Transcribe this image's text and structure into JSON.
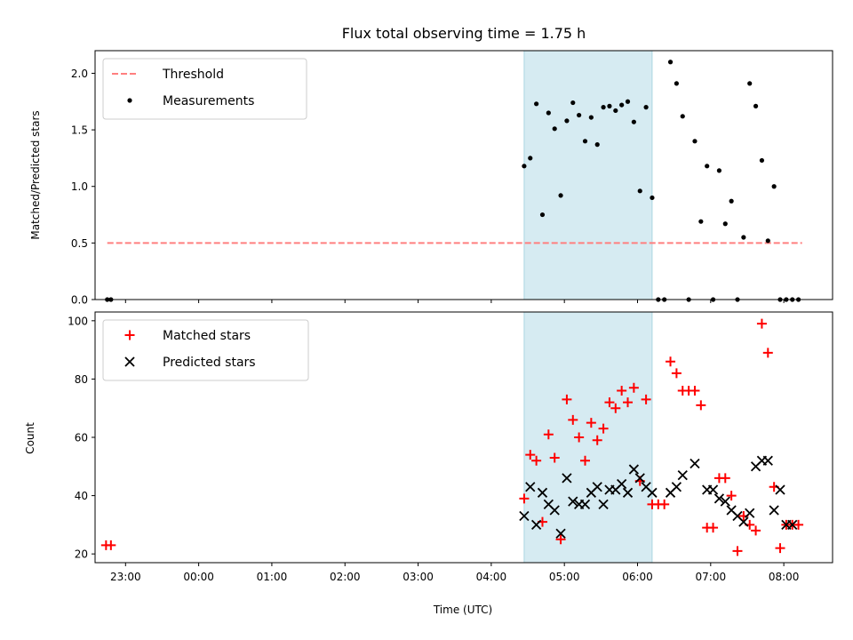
{
  "title": "Flux total observing time = 1.75 h",
  "chart_data": [
    {
      "type": "scatter",
      "ylabel": "Matched/Predicted stars",
      "x_unit": "UTC time",
      "xlim": [
        "22:35",
        "08:40"
      ],
      "ylim": [
        0,
        2.2
      ],
      "yticks": [
        "0.0",
        "0.5",
        "1.0",
        "1.5",
        "2.0"
      ],
      "grid": false,
      "legend_position": "top-left",
      "legend": [
        "Threshold",
        "Measurements"
      ],
      "shaded_interval": [
        "04:27",
        "06:12"
      ],
      "threshold": {
        "name": "Threshold",
        "y": 0.5,
        "x": [
          "22:45",
          "08:15"
        ],
        "color": "#ff7f7f",
        "style": "dashed"
      },
      "series": [
        {
          "name": "Measurements",
          "color": "#000000",
          "x": [
            "22:45",
            "22:48",
            "04:27",
            "04:32",
            "04:37",
            "04:42",
            "04:47",
            "04:52",
            "04:57",
            "05:02",
            "05:07",
            "05:12",
            "05:17",
            "05:22",
            "05:27",
            "05:32",
            "05:37",
            "05:42",
            "05:47",
            "05:52",
            "05:57",
            "06:02",
            "06:07",
            "06:12",
            "06:17",
            "06:22",
            "06:27",
            "06:32",
            "06:37",
            "06:42",
            "06:47",
            "06:52",
            "06:57",
            "07:02",
            "07:07",
            "07:12",
            "07:17",
            "07:22",
            "07:27",
            "07:32",
            "07:37",
            "07:42",
            "07:47",
            "07:52",
            "07:57",
            "08:02",
            "08:07",
            "08:12"
          ],
          "y": [
            0,
            0,
            1.18,
            1.25,
            1.73,
            0.75,
            1.65,
            1.51,
            0.92,
            1.58,
            1.74,
            1.63,
            1.4,
            1.61,
            1.37,
            1.7,
            1.71,
            1.67,
            1.72,
            1.75,
            1.57,
            0.96,
            1.7,
            0.9,
            0,
            0,
            2.1,
            1.91,
            1.62,
            0,
            1.4,
            0.69,
            1.18,
            0,
            1.14,
            0.67,
            0.87,
            0,
            0.55,
            1.91,
            1.71,
            1.23,
            0.52,
            1.0,
            0,
            0,
            0,
            0
          ]
        }
      ]
    },
    {
      "type": "scatter",
      "xlabel": "Time (UTC)",
      "ylabel": "Count",
      "xlim": [
        "22:35",
        "08:40"
      ],
      "ylim": [
        17,
        103
      ],
      "xticks": [
        "23:00",
        "00:00",
        "01:00",
        "02:00",
        "03:00",
        "04:00",
        "05:00",
        "06:00",
        "07:00",
        "08:00"
      ],
      "yticks": [
        "20",
        "40",
        "60",
        "80",
        "100"
      ],
      "grid": false,
      "legend_position": "top-left",
      "legend": [
        "Matched stars",
        "Predicted stars"
      ],
      "shaded_interval": [
        "04:27",
        "06:12"
      ],
      "series": [
        {
          "name": "Matched stars",
          "marker": "+",
          "color": "#ff0000",
          "x": [
            "22:44",
            "22:48",
            "04:27",
            "04:32",
            "04:37",
            "04:42",
            "04:47",
            "04:52",
            "04:57",
            "05:02",
            "05:07",
            "05:12",
            "05:17",
            "05:22",
            "05:27",
            "05:32",
            "05:37",
            "05:42",
            "05:47",
            "05:52",
            "05:57",
            "06:02",
            "06:07",
            "06:12",
            "06:17",
            "06:22",
            "06:27",
            "06:32",
            "06:37",
            "06:42",
            "06:47",
            "06:52",
            "06:57",
            "07:02",
            "07:07",
            "07:12",
            "07:17",
            "07:22",
            "07:27",
            "07:32",
            "07:37",
            "07:42",
            "07:47",
            "07:52",
            "07:57",
            "08:02",
            "08:07",
            "08:12"
          ],
          "y": [
            23,
            23,
            39,
            54,
            52,
            31,
            61,
            53,
            25,
            73,
            66,
            60,
            52,
            65,
            59,
            63,
            72,
            70,
            76,
            72,
            77,
            45,
            73,
            37,
            37,
            37,
            86,
            82,
            76,
            76,
            76,
            71,
            29,
            29,
            46,
            46,
            40,
            21,
            33,
            30,
            28,
            99,
            89,
            43,
            22,
            30,
            30,
            30
          ]
        },
        {
          "name": "Predicted stars",
          "marker": "x",
          "color": "#000000",
          "x": [
            "04:27",
            "04:32",
            "04:37",
            "04:42",
            "04:47",
            "04:52",
            "04:57",
            "05:02",
            "05:07",
            "05:12",
            "05:17",
            "05:22",
            "05:27",
            "05:32",
            "05:37",
            "05:42",
            "05:47",
            "05:52",
            "05:57",
            "06:02",
            "06:07",
            "06:12",
            "06:27",
            "06:32",
            "06:37",
            "06:47",
            "06:57",
            "07:02",
            "07:07",
            "07:12",
            "07:17",
            "07:22",
            "07:27",
            "07:32",
            "07:37",
            "07:42",
            "07:47",
            "07:52",
            "07:57",
            "08:02",
            "08:07"
          ],
          "y": [
            33,
            43,
            30,
            41,
            37,
            35,
            27,
            46,
            38,
            37,
            37,
            41,
            43,
            37,
            42,
            42,
            44,
            41,
            49,
            46,
            43,
            41,
            41,
            43,
            47,
            51,
            42,
            42,
            39,
            38,
            35,
            33,
            31,
            34,
            50,
            52,
            52,
            35,
            42,
            30,
            30
          ]
        }
      ]
    }
  ]
}
